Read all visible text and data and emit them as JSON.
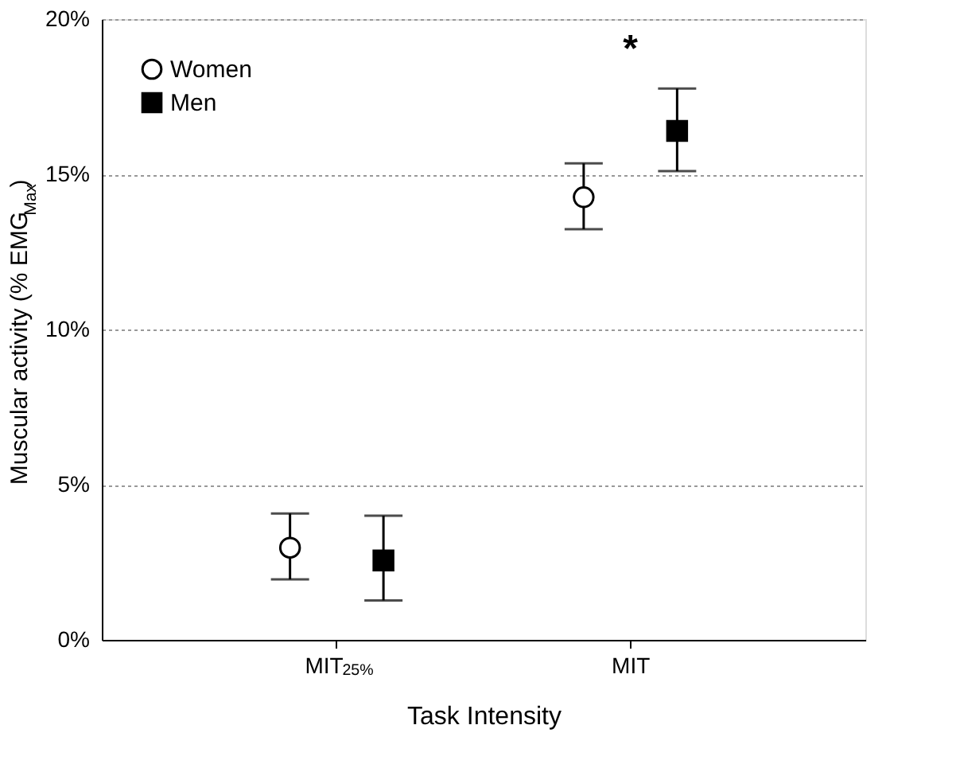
{
  "chart_data": {
    "type": "scatter",
    "xlabel": "Task Intensity",
    "ylabel": "Muscular activity (% EMG$_{Max}$)",
    "categories": [
      "MIT$_{25%}$",
      "MIT"
    ],
    "series": [
      {
        "name": "Women",
        "color": "#ffffff",
        "marker": "circle",
        "values": [
          2.97,
          14.26
        ],
        "errors": [
          [
            1.95,
            4.07
          ],
          [
            13.23,
            15.35
          ]
        ]
      },
      {
        "name": "Men",
        "color": "#000000",
        "marker": "square",
        "values": [
          2.56,
          16.4
        ],
        "errors": [
          [
            1.27,
            4.0
          ],
          [
            15.1,
            17.76
          ]
        ]
      }
    ],
    "ylim": [
      0,
      20
    ],
    "yticks": [
      {
        "value": 0,
        "label": "0%"
      },
      {
        "value": 5,
        "label": "5%"
      },
      {
        "value": 10,
        "label": "10%"
      },
      {
        "value": 15,
        "label": "15%"
      },
      {
        "value": 20,
        "label": "20%"
      }
    ],
    "grid": "y",
    "legend": "top left",
    "annotations": [
      "*"
    ]
  }
}
